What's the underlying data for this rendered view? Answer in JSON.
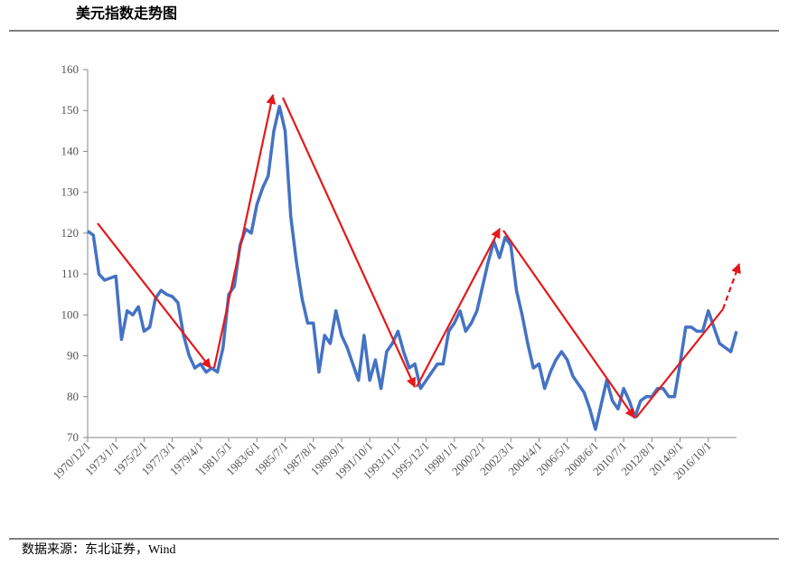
{
  "header": {
    "title": "美元指数走势图"
  },
  "chart_data": {
    "type": "line",
    "categories": [
      "1970/12/1",
      null,
      null,
      null,
      null,
      "1973/1/1",
      null,
      null,
      null,
      null,
      "1975/2/1",
      null,
      null,
      null,
      null,
      "1977/3/1",
      null,
      null,
      null,
      null,
      "1979/4/1",
      null,
      null,
      null,
      null,
      "1981/5/1",
      null,
      null,
      null,
      null,
      "1983/6/1",
      null,
      null,
      null,
      null,
      "1985/7/1",
      null,
      null,
      null,
      null,
      "1987/8/1",
      null,
      null,
      null,
      null,
      "1989/9/1",
      null,
      null,
      null,
      null,
      "1991/10/1",
      null,
      null,
      null,
      null,
      "1993/11/1",
      null,
      null,
      null,
      null,
      "1995/12/1",
      null,
      null,
      null,
      null,
      "1998/1/1",
      null,
      null,
      null,
      null,
      "2000/2/1",
      null,
      null,
      null,
      null,
      "2002/3/1",
      null,
      null,
      null,
      null,
      "2004/4/1",
      null,
      null,
      null,
      null,
      "2006/5/1",
      null,
      null,
      null,
      null,
      "2008/6/1",
      null,
      null,
      null,
      null,
      "2010/7/1",
      null,
      null,
      null,
      null,
      "2012/8/1",
      null,
      null,
      null,
      null,
      "2014/9/1",
      null,
      null,
      null,
      null,
      "2016/10/1",
      null,
      null,
      null,
      null,
      null
    ],
    "series": [
      {
        "color": "#4472c4",
        "values": [
          120.5,
          119.5,
          110,
          108.5,
          109,
          109.5,
          94,
          101,
          100,
          102,
          96,
          97,
          104,
          106,
          105,
          104.5,
          103,
          95,
          90,
          87,
          88,
          86,
          87,
          86,
          92,
          105,
          107,
          117,
          121,
          120,
          127,
          131,
          134,
          145,
          151,
          145,
          124,
          113,
          104,
          98,
          98,
          86,
          95,
          93,
          101,
          95,
          92,
          88,
          84,
          95,
          84,
          89,
          82,
          91,
          93,
          96,
          91,
          87,
          88,
          82,
          84,
          86,
          88,
          88,
          96,
          98,
          101,
          96,
          98,
          101,
          107,
          113,
          118,
          114,
          119,
          117,
          106,
          100,
          93,
          87,
          88,
          82,
          86,
          89,
          91,
          89,
          85,
          83,
          81,
          77,
          72,
          78,
          84,
          79,
          77,
          82,
          79,
          75,
          79,
          80,
          80,
          82,
          82,
          80,
          80,
          88,
          97,
          97,
          96,
          96,
          101,
          97,
          93,
          92,
          91,
          96
        ]
      }
    ],
    "ylim": [
      70,
      160
    ],
    "yticks": [
      70,
      80,
      90,
      100,
      110,
      120,
      130,
      140,
      150,
      160
    ]
  },
  "footer": {
    "source": "数据来源：东北证券，Wind"
  }
}
